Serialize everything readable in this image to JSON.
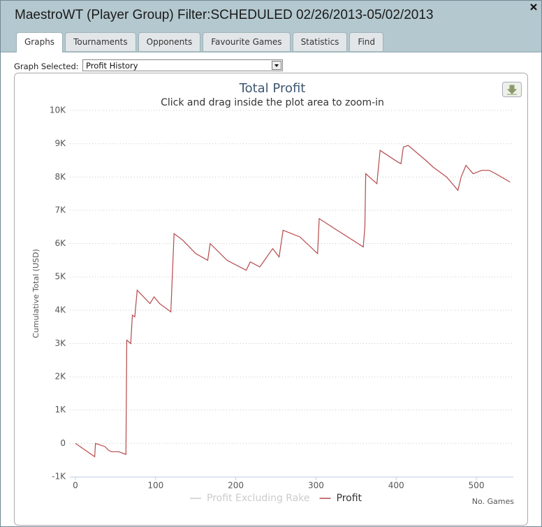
{
  "window": {
    "title": "MaestroWT (Player Group) Filter:SCHEDULED 02/26/2013-05/02/2013"
  },
  "tabs": [
    "Graphs",
    "Tournaments",
    "Opponents",
    "Favourite Games",
    "Statistics",
    "Find"
  ],
  "graph_selector": {
    "label": "Graph Selected:",
    "value": "Profit History"
  },
  "chart_data": {
    "type": "line",
    "title": "Total Profit",
    "subtitle": "Click and drag inside the plot area to zoom-in",
    "y_label": "Cumulative Total (USD)",
    "x_label": "No. Games",
    "xlim": [
      0,
      546
    ],
    "xticks": [
      0,
      100,
      200,
      300,
      400,
      500
    ],
    "ylim": [
      -1000,
      10000
    ],
    "yticks": [
      {
        "value": -1000,
        "label": "-1K"
      },
      0,
      {
        "value": 1000,
        "label": "1K"
      },
      {
        "value": 2000,
        "label": "2K"
      },
      {
        "value": 3000,
        "label": "3K"
      },
      {
        "value": 4000,
        "label": "4K"
      },
      {
        "value": 5000,
        "label": "5K"
      },
      {
        "value": 6000,
        "label": "6K"
      },
      {
        "value": 7000,
        "label": "7K"
      },
      {
        "value": 8000,
        "label": "8K"
      },
      {
        "value": 9000,
        "label": "9K"
      },
      {
        "value": 10000,
        "label": "10K"
      }
    ],
    "grid": true,
    "legend": "bottom",
    "x": [
      0,
      6,
      15,
      24,
      25,
      37,
      41,
      45,
      54,
      63,
      64,
      69,
      71,
      74,
      77,
      93,
      98,
      105,
      119,
      123,
      134,
      150,
      165,
      168,
      189,
      213,
      218,
      230,
      246,
      254,
      259,
      280,
      302,
      304,
      320,
      346,
      359,
      361,
      362,
      376,
      380,
      402,
      406,
      409,
      415,
      437,
      446,
      463,
      477,
      481,
      487,
      496,
      507,
      516,
      524,
      542
    ],
    "series": [
      {
        "name": "Profit Excluding Rake",
        "color": "#cccccc",
        "visible": false
      },
      {
        "name": "Profit",
        "color": "#b5494b",
        "visible": true,
        "values": [
          0,
          -100,
          -250,
          -400,
          0,
          -100,
          -200,
          -250,
          -250,
          -330,
          3100,
          3000,
          3850,
          3800,
          4600,
          4200,
          4400,
          4200,
          3950,
          6300,
          6100,
          5700,
          5500,
          6000,
          5500,
          5200,
          5450,
          5300,
          5850,
          5600,
          6400,
          6200,
          5700,
          6750,
          6500,
          6100,
          5900,
          6500,
          8100,
          7800,
          8800,
          8450,
          8400,
          8900,
          8950,
          8500,
          8300,
          8000,
          7600,
          8000,
          8350,
          8100,
          8200,
          8200,
          8100,
          7850
        ]
      }
    ]
  }
}
